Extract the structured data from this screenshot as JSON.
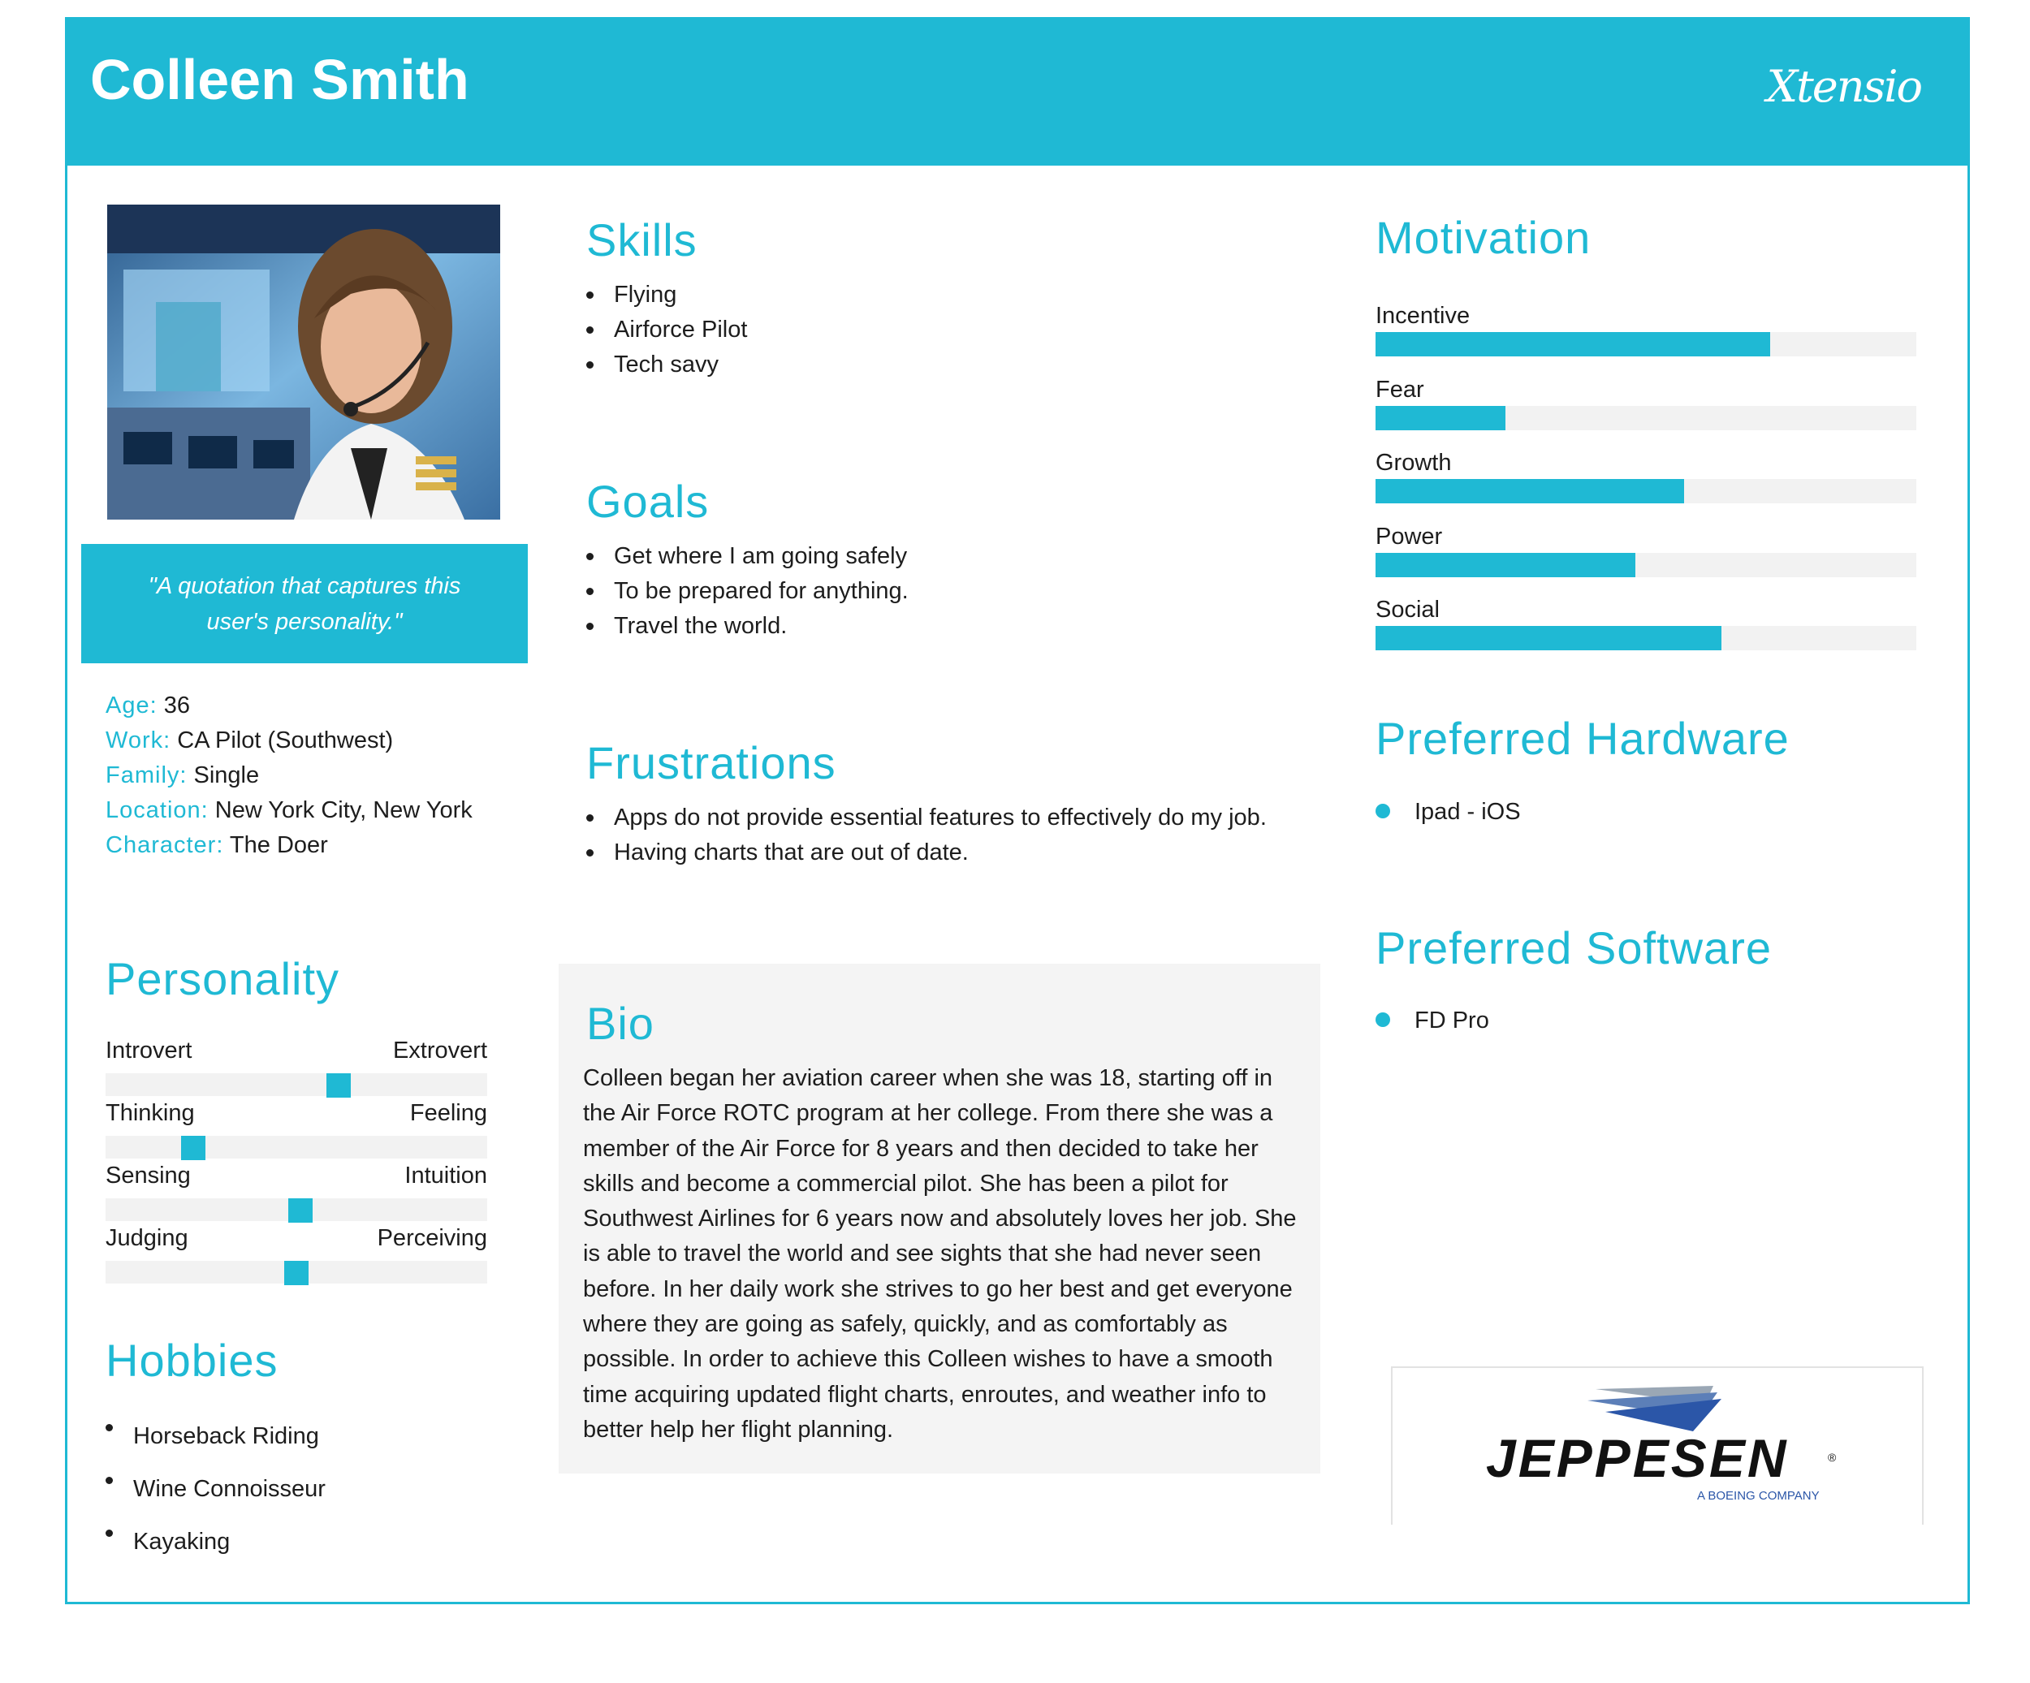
{
  "header": {
    "name": "Colleen Smith",
    "brand": "Xtensio"
  },
  "profile": {
    "quote": "\"A quotation that captures this user's personality.\"",
    "facts": [
      {
        "key": "Age:",
        "value": " 36"
      },
      {
        "key": "Work:",
        "value": " CA Pilot (Southwest)"
      },
      {
        "key": "Family:",
        "value": " Single"
      },
      {
        "key": "Location:",
        "value": " New York City, New York"
      },
      {
        "key": "Character:",
        "value": " The Doer"
      }
    ]
  },
  "personality": {
    "title": "Personality",
    "traits": [
      {
        "left": "Introvert",
        "right": "Extrovert",
        "value": 0.61
      },
      {
        "left": "Thinking",
        "right": "Feeling",
        "value": 0.23
      },
      {
        "left": "Sensing",
        "right": "Intuition",
        "value": 0.51
      },
      {
        "left": "Judging",
        "right": "Perceiving",
        "value": 0.5
      }
    ]
  },
  "hobbies": {
    "title": "Hobbies",
    "items": [
      "Horseback Riding",
      "Wine Connoisseur",
      "Kayaking"
    ]
  },
  "skills": {
    "title": "Skills",
    "items": [
      "Flying",
      "Airforce Pilot",
      "Tech savy"
    ]
  },
  "goals": {
    "title": "Goals",
    "items": [
      "Get where I am going safely",
      "To be prepared for anything.",
      "Travel the world."
    ]
  },
  "frustrations": {
    "title": "Frustrations",
    "items": [
      "Apps do not provide essential features to effectively do my job.",
      "Having charts that are out of date."
    ]
  },
  "bio": {
    "title": "Bio",
    "text": "Colleen began her aviation career when she was 18, starting off in the Air Force ROTC program at her college. From there she was a member of the Air Force for 8 years and then decided to take her skills and become a commercial pilot. She has been a pilot for Southwest Airlines for 6 years now and absolutely loves her job. She is able to travel the world and see sights that she had never seen before. In her daily work she strives to go her best and get everyone where they are going as safely, quickly, and as comfortably as possible. In order to achieve this Colleen wishes to have a smooth time acquiring updated flight charts, enroutes, and weather info to better help her flight planning."
  },
  "motivation": {
    "title": "Motivation",
    "items": [
      {
        "label": "Incentive",
        "value": 0.73
      },
      {
        "label": "Fear",
        "value": 0.24
      },
      {
        "label": "Growth",
        "value": 0.57
      },
      {
        "label": "Power",
        "value": 0.48
      },
      {
        "label": "Social",
        "value": 0.64
      }
    ]
  },
  "hardware": {
    "title": "Preferred Hardware",
    "items": [
      "Ipad - iOS"
    ]
  },
  "software": {
    "title": "Preferred Software",
    "items": [
      "FD Pro"
    ]
  },
  "logo": {
    "name": "JEPPESEN",
    "registered": "®",
    "tagline": "A BOEING COMPANY"
  },
  "colors": {
    "accent": "#1fb9d4",
    "panel": "#f4f4f4",
    "track": "#f2f2f2"
  }
}
